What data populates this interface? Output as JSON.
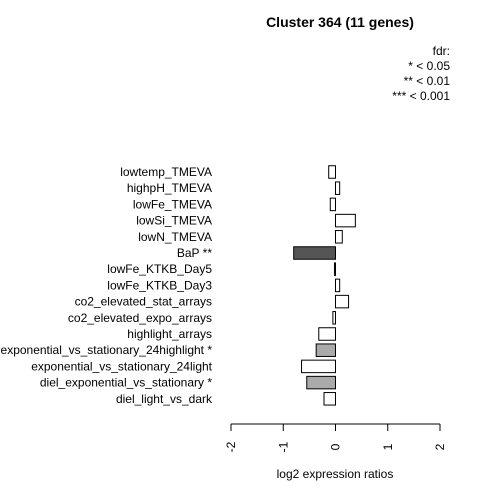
{
  "chart_data": {
    "type": "bar",
    "orientation": "horizontal",
    "title": "Cluster 364 (11 genes)",
    "xlabel": "log2 expression ratios",
    "xlim": [
      -2,
      2
    ],
    "x_ticks": [
      "-2",
      "-1",
      "0",
      "1",
      "2"
    ],
    "legend": {
      "lines": [
        "fdr:",
        "* < 0.05",
        "** < 0.01",
        "*** < 0.001"
      ],
      "placement": "top-right"
    },
    "categories": [
      "lowtemp_TMEVA",
      "highpH_TMEVA",
      "lowFe_TMEVA",
      "lowSi_TMEVA",
      "lowN_TMEVA",
      "BaP **",
      "lowFe_KTKB_Day5",
      "lowFe_KTKB_Day3",
      "co2_elevated_stat_arrays",
      "co2_elevated_expo_arrays",
      "highlight_arrays",
      "exponential_vs_stationary_24highlight *",
      "exponential_vs_stationary_24light",
      "diel_exponential_vs_stationary *",
      "diel_light_vs_dark"
    ],
    "values": [
      -0.13,
      0.08,
      -0.1,
      0.38,
      0.13,
      -0.8,
      -0.02,
      0.08,
      0.25,
      -0.05,
      -0.32,
      -0.37,
      -0.65,
      -0.55,
      -0.22
    ],
    "fills": [
      "#ffffff",
      "#ffffff",
      "#ffffff",
      "#ffffff",
      "#ffffff",
      "#555555",
      "#ffffff",
      "#ffffff",
      "#ffffff",
      "#ffffff",
      "#ffffff",
      "#aaaaaa",
      "#ffffff",
      "#aaaaaa",
      "#ffffff"
    ]
  }
}
